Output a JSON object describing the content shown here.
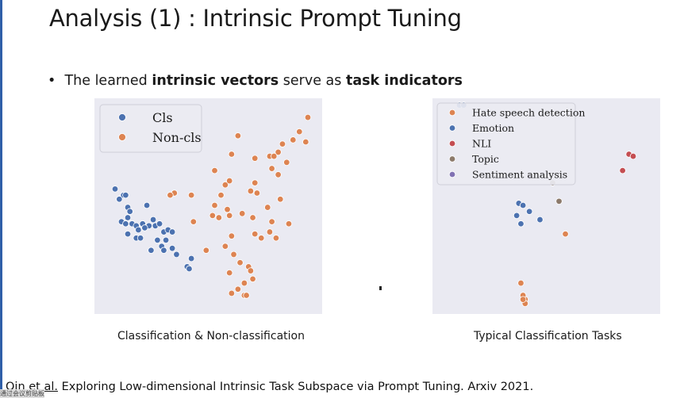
{
  "slide": {
    "title": "Analysis (1) : Intrinsic Prompt Tuning",
    "bullet": {
      "prefix": "The learned ",
      "bold1": "intrinsic vectors",
      "middle": " serve as ",
      "bold2": "task indicators"
    },
    "citation": {
      "linked": "Qin et al.",
      "rest": " Exploring Low-dimensional Intrinsic Task Subspace via Prompt Tuning. Arxiv 2021."
    },
    "watermark": "通过会议剪贴板"
  },
  "colors": {
    "blue": "#4c72b0",
    "orange": "#dd8452",
    "red": "#c44e52",
    "brown": "#8c7a6b",
    "purple": "#8172b3",
    "plot_bg": "#eaeaf2",
    "accent_edge": "#2f5fa8"
  },
  "chart_data": [
    {
      "type": "scatter",
      "xlabel": "Classification & Non-classification",
      "legend": {
        "placement": "top-left",
        "entries": [
          "Cls",
          "Non-cls"
        ]
      },
      "grid": false,
      "xlim": [
        0,
        100
      ],
      "ylim": [
        0,
        100
      ],
      "series": [
        {
          "name": "Cls",
          "color": "#4c72b0",
          "x": [
            6,
            10,
            8,
            11,
            12,
            13,
            9,
            11,
            14,
            16,
            12,
            17,
            19,
            22,
            16,
            18,
            20,
            25,
            27,
            29,
            26,
            31,
            33,
            23,
            28,
            30,
            35,
            33,
            40,
            42,
            41,
            21,
            24,
            29,
            12
          ],
          "y": [
            58,
            55,
            53,
            55,
            49,
            47,
            42,
            41,
            41,
            40,
            36,
            38,
            41,
            40,
            34,
            34,
            39,
            40,
            41,
            37,
            33,
            38,
            37,
            28,
            30,
            33,
            26,
            29,
            20,
            24,
            19,
            50,
            43,
            28,
            44
          ]
        },
        {
          "name": "Non-cls",
          "color": "#dd8452",
          "x": [
            64,
            61,
            53,
            58,
            72,
            60,
            85,
            83,
            79,
            93,
            96,
            97,
            90,
            81,
            80,
            87,
            83,
            72,
            70,
            59,
            53,
            42,
            43,
            34,
            32,
            52,
            60,
            55,
            66,
            72,
            75,
            79,
            65,
            69,
            70,
            71,
            67,
            67,
            61,
            64,
            62,
            58,
            60,
            68,
            82,
            88,
            80,
            78,
            73,
            71,
            61,
            56,
            49,
            84
          ],
          "y": [
            84,
            75,
            67,
            60,
            73,
            62,
            80,
            76,
            74,
            86,
            81,
            93,
            82,
            74,
            68,
            71,
            65,
            61,
            57,
            48,
            50,
            55,
            42,
            56,
            55,
            45,
            45,
            44,
            46,
            36,
            34,
            37,
            22,
            20,
            18,
            14,
            12,
            6,
            7,
            9,
            26,
            30,
            17,
            6,
            34,
            41,
            42,
            49,
            56,
            44,
            35,
            55,
            28,
            53
          ]
        }
      ]
    },
    {
      "type": "scatter",
      "xlabel": "Typical Classification Tasks",
      "legend": {
        "placement": "top-left",
        "entries": [
          "Hate speech detection",
          "Emotion",
          "NLI",
          "Topic",
          "Sentiment analysis"
        ]
      },
      "grid": false,
      "xlim": [
        0,
        100
      ],
      "ylim": [
        0,
        100
      ],
      "series": [
        {
          "name": "Hate speech detection",
          "color": "#dd8452",
          "x": [
            38,
            40,
            39,
            40,
            39,
            59
          ],
          "y": [
            12,
            4,
            6,
            2,
            4,
            36
          ]
        },
        {
          "name": "Emotion",
          "color": "#4c72b0",
          "x": [
            37,
            39,
            36,
            42,
            47,
            38,
            9,
            11
          ],
          "y": [
            51,
            50,
            45,
            47,
            43,
            41,
            99,
            99
          ]
        },
        {
          "name": "NLI",
          "color": "#c44e52",
          "x": [
            89,
            91,
            86
          ],
          "y": [
            75,
            74,
            67
          ]
        },
        {
          "name": "Topic",
          "color": "#8c7a6b",
          "x": [
            53,
            56
          ],
          "y": [
            61,
            52
          ]
        },
        {
          "name": "Sentiment analysis",
          "color": "#8172b3",
          "x": [
            42
          ],
          "y": [
            64
          ]
        }
      ]
    }
  ]
}
